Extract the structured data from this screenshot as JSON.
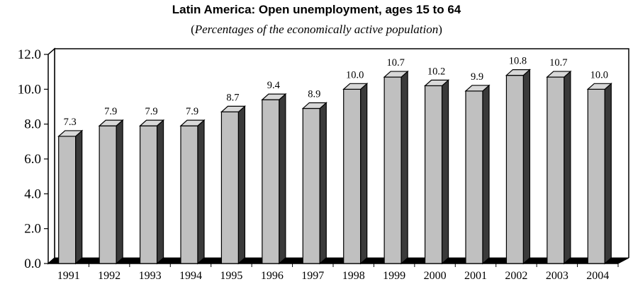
{
  "chart_data": {
    "type": "bar",
    "title": "Latin America: Open unemployment, ages 15 to 64",
    "subtitle": "(Percentages of the economically active population)",
    "subtitle_open": "(",
    "subtitle_text": "Percentages of the economically active population",
    "subtitle_close": ")",
    "categories": [
      "1991",
      "1992",
      "1993",
      "1994",
      "1995",
      "1996",
      "1997",
      "1998",
      "1999",
      "2000",
      "2001",
      "2002",
      "2003",
      "2004"
    ],
    "values": [
      7.3,
      7.9,
      7.9,
      7.9,
      8.7,
      9.4,
      8.9,
      10.0,
      10.7,
      10.2,
      9.9,
      10.8,
      10.7,
      10.0
    ],
    "value_labels": [
      "7.3",
      "7.9",
      "7.9",
      "7.9",
      "8.7",
      "9.4",
      "8.9",
      "10.0",
      "10.7",
      "10.2",
      "9.9",
      "10.8",
      "10.7",
      "10.0"
    ],
    "y_ticks": [
      0,
      2,
      4,
      6,
      8,
      10,
      12
    ],
    "y_tick_labels": [
      "0.0",
      "2.0",
      "4.0",
      "6.0",
      "8.0",
      "10.0",
      "12.0"
    ],
    "ylim": [
      0,
      12
    ],
    "xlabel": "",
    "ylabel": "",
    "grid": false,
    "legend": "none",
    "bar_style": "3d",
    "colors": {
      "bar_front": "#c0c0c0",
      "bar_side": "#3a3a3a",
      "bar_top": "#d8d8d8",
      "floor": "#000000"
    }
  }
}
